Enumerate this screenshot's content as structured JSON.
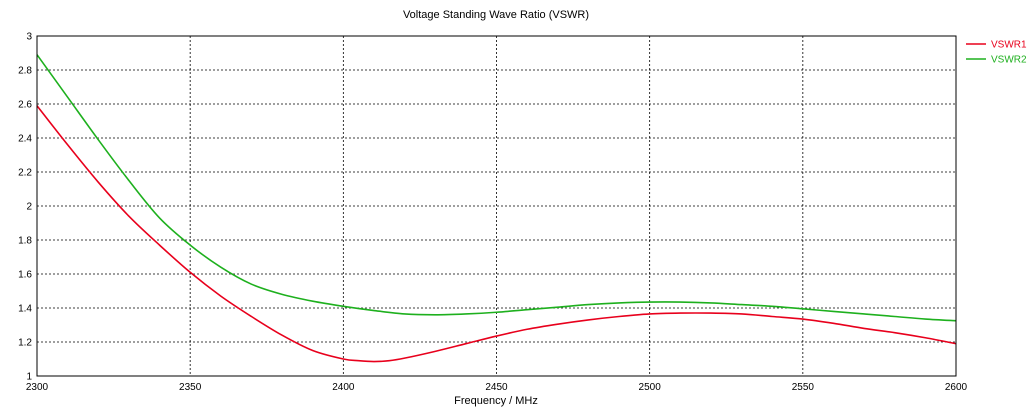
{
  "chart_data": {
    "type": "line",
    "title": "Voltage Standing Wave Ratio (VSWR)",
    "xlabel": "Frequency / MHz",
    "ylabel": "",
    "xlim": [
      2300,
      2600
    ],
    "ylim": [
      1,
      3
    ],
    "xticks": [
      2300,
      2350,
      2400,
      2450,
      2500,
      2550,
      2600
    ],
    "yticks": [
      1,
      1.2,
      1.4,
      1.6,
      1.8,
      2,
      2.2,
      2.4,
      2.6,
      2.8,
      3
    ],
    "grid": true,
    "legend_position": "right",
    "series": [
      {
        "name": "VSWR1",
        "color": "#e8001c",
        "x": [
          2300,
          2310,
          2320,
          2330,
          2340,
          2350,
          2360,
          2370,
          2380,
          2390,
          2400,
          2405,
          2410,
          2415,
          2420,
          2430,
          2440,
          2450,
          2460,
          2470,
          2480,
          2490,
          2500,
          2510,
          2520,
          2530,
          2540,
          2550,
          2560,
          2570,
          2580,
          2590,
          2600
        ],
        "y": [
          2.59,
          2.36,
          2.14,
          1.94,
          1.77,
          1.61,
          1.47,
          1.35,
          1.24,
          1.15,
          1.1,
          1.09,
          1.085,
          1.09,
          1.105,
          1.145,
          1.19,
          1.235,
          1.275,
          1.305,
          1.33,
          1.35,
          1.365,
          1.37,
          1.37,
          1.365,
          1.35,
          1.335,
          1.31,
          1.28,
          1.255,
          1.225,
          1.19
        ]
      },
      {
        "name": "VSWR2",
        "color": "#1eb01e",
        "x": [
          2300,
          2310,
          2320,
          2330,
          2340,
          2350,
          2360,
          2370,
          2380,
          2390,
          2400,
          2410,
          2420,
          2430,
          2440,
          2450,
          2460,
          2470,
          2480,
          2490,
          2500,
          2510,
          2520,
          2530,
          2540,
          2550,
          2560,
          2570,
          2580,
          2590,
          2600
        ],
        "y": [
          2.89,
          2.64,
          2.39,
          2.15,
          1.93,
          1.77,
          1.64,
          1.54,
          1.48,
          1.44,
          1.41,
          1.385,
          1.365,
          1.36,
          1.365,
          1.375,
          1.39,
          1.405,
          1.42,
          1.43,
          1.435,
          1.435,
          1.43,
          1.42,
          1.41,
          1.395,
          1.38,
          1.365,
          1.35,
          1.335,
          1.325
        ]
      }
    ]
  }
}
